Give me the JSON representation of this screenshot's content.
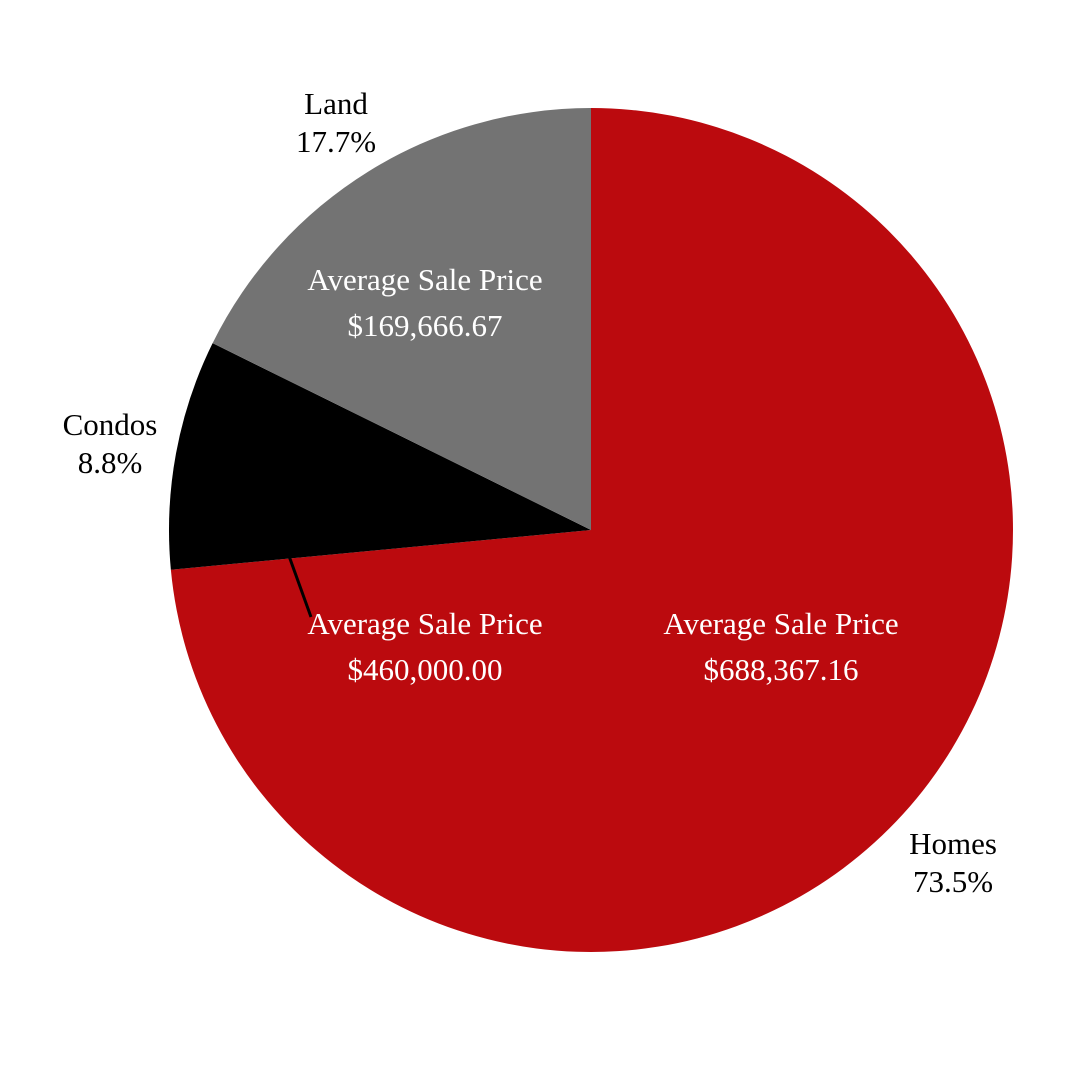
{
  "chart_data": {
    "type": "pie",
    "slices": [
      {
        "name": "Homes",
        "value": 73.5,
        "pct_label": "73.5%",
        "caption": "Average Sale Price",
        "price_label": "$688,367.16",
        "color": "#bb0a0e"
      },
      {
        "name": "Condos",
        "value": 8.8,
        "pct_label": "8.8%",
        "caption": "Average Sale Price",
        "price_label": "$460,000.00",
        "color": "#000000"
      },
      {
        "name": "Land",
        "value": 17.7,
        "pct_label": "17.7%",
        "caption": "Average Sale Price",
        "price_label": "$169,666.67",
        "color": "#737373"
      }
    ],
    "start_angle_deg": 0,
    "direction": "clockwise",
    "legend": "none"
  }
}
